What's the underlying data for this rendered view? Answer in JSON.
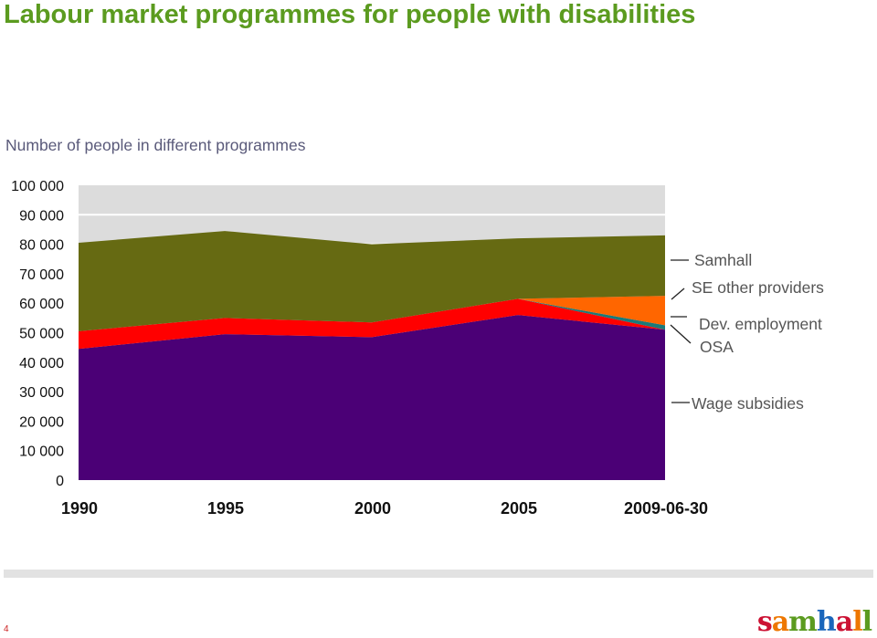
{
  "header": {
    "title": "Labour market programmes for people with disabilities",
    "subtitle": "Number of people in different programmes"
  },
  "chart_data": {
    "type": "area",
    "stacked": true,
    "title": "Labour market programmes for people with disabilities",
    "subtitle": "Number of people in different programmes",
    "xlabel": "",
    "ylabel": "",
    "x": [
      "1990",
      "1995",
      "2000",
      "2005",
      "2009-06-30"
    ],
    "ylim": [
      0,
      100000
    ],
    "yticks": [
      0,
      10000,
      20000,
      30000,
      40000,
      50000,
      60000,
      70000,
      80000,
      90000,
      100000
    ],
    "ytick_labels": [
      "0",
      "10 000",
      "20 000",
      "30 000",
      "40 000",
      "50 000",
      "60 000",
      "70 000",
      "80 000",
      "90 000",
      "100 000"
    ],
    "grid": true,
    "series": [
      {
        "name": "Wage subsidies",
        "color": "#4b0076",
        "values": [
          44500,
          49500,
          48500,
          56000,
          51000
        ]
      },
      {
        "name": "OSA",
        "color": "#ff0000",
        "values": [
          6000,
          5500,
          5000,
          5500,
          0
        ]
      },
      {
        "name": "Dev. employment",
        "color": "#1a7a7a",
        "values": [
          0,
          0,
          0,
          0,
          1500
        ]
      },
      {
        "name": "SE other providers",
        "color": "#ff6600",
        "values": [
          0,
          0,
          0,
          0,
          10000
        ]
      },
      {
        "name": "Samhall",
        "color": "#666a12",
        "values": [
          30000,
          29500,
          26500,
          20500,
          20500
        ]
      }
    ],
    "legend_placement": "right"
  },
  "footer": {
    "page_number": "4",
    "logo_letters": [
      "s",
      "a",
      "m",
      "h",
      "a",
      "l",
      "l"
    ],
    "logo_colors": [
      "#cc1133",
      "#ee7700",
      "#5b9b1f",
      "#1a66bb",
      "#cc1133",
      "#ee7700",
      "#5b9b1f"
    ]
  }
}
